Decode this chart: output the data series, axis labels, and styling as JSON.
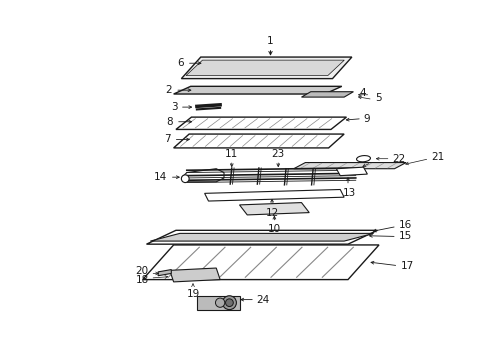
{
  "bg_color": "#ffffff",
  "line_color": "#1a1a1a",
  "fig_width": 4.9,
  "fig_height": 3.6,
  "dpi": 100,
  "font_size": 7.5
}
